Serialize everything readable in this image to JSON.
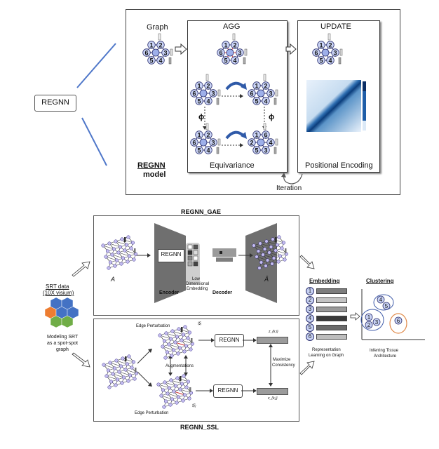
{
  "top": {
    "regnn_label": "REGNN",
    "graph_label": "Graph",
    "agg_label": "AGG",
    "update_label": "UPDATE",
    "equivariance_label": "Equivariance",
    "positional_encoding_label": "Positional Encoding",
    "iteration_label": "Iteration",
    "model_label_line1": "REGNN",
    "model_label_line2": "model",
    "phi_symbol": "ϕ",
    "node_numbers": [
      "1",
      "2",
      "3",
      "4",
      "5",
      "6"
    ]
  },
  "bottom": {
    "gae_title": "REGNN_GAE",
    "ssl_title": "REGNN_SSL",
    "regnn_block": "REGNN",
    "encoder_label": "Encoder",
    "decoder_label": "Decoder",
    "low_dim_line1": "Low",
    "low_dim_line2": "Dimensional",
    "low_dim_line3": "Embedding",
    "a_symbol": "A",
    "a_hat_symbol": "Â",
    "srt_line1": "SRT data",
    "srt_line2": "(10X visium)",
    "modeling_line1": "Modeling SRT",
    "modeling_line2": "as a spot-spot",
    "modeling_line3": "graph",
    "edge_perturbation_top": "Edge Perturbation",
    "edge_perturbation_bottom": "Edge Perturbation",
    "augmentations_label": "Augmentations",
    "regnn_ssl_top": "REGNN",
    "regnn_ssl_bottom": "REGNN",
    "gi_symbol": "𝒢ᵢ",
    "gj_symbol": "𝒢ⱼ",
    "zki_symbol": "z_{k,i}",
    "zkj_symbol": "z_{k,j}",
    "maximize_line1": "Maximize",
    "maximize_line2": "Consistency",
    "embedding_title": "Embedding",
    "clustering_title": "Clustering",
    "repr_line1": "Representation",
    "repr_line2": "Learning on Graph",
    "inferring_line1": "Inferring Tissue",
    "inferring_line2": "Architecture",
    "embedding_rows": [
      "1",
      "2",
      "3",
      "4",
      "5",
      "6"
    ],
    "cluster_nodes": [
      "4",
      "5",
      "1",
      "2",
      "3",
      "6"
    ]
  },
  "colors": {
    "node_fill": "#c9d3f5",
    "node_stroke": "#2b2f6e",
    "connector_blue": "#4f77c9",
    "arrow_dark_blue": "#2f5aa8",
    "cluster_blue": "#3f5ba9",
    "cluster_orange": "#e08a4a",
    "hex_blue": "#4472c4",
    "hex_orange": "#ed7d31",
    "hex_green": "#70ad47"
  }
}
